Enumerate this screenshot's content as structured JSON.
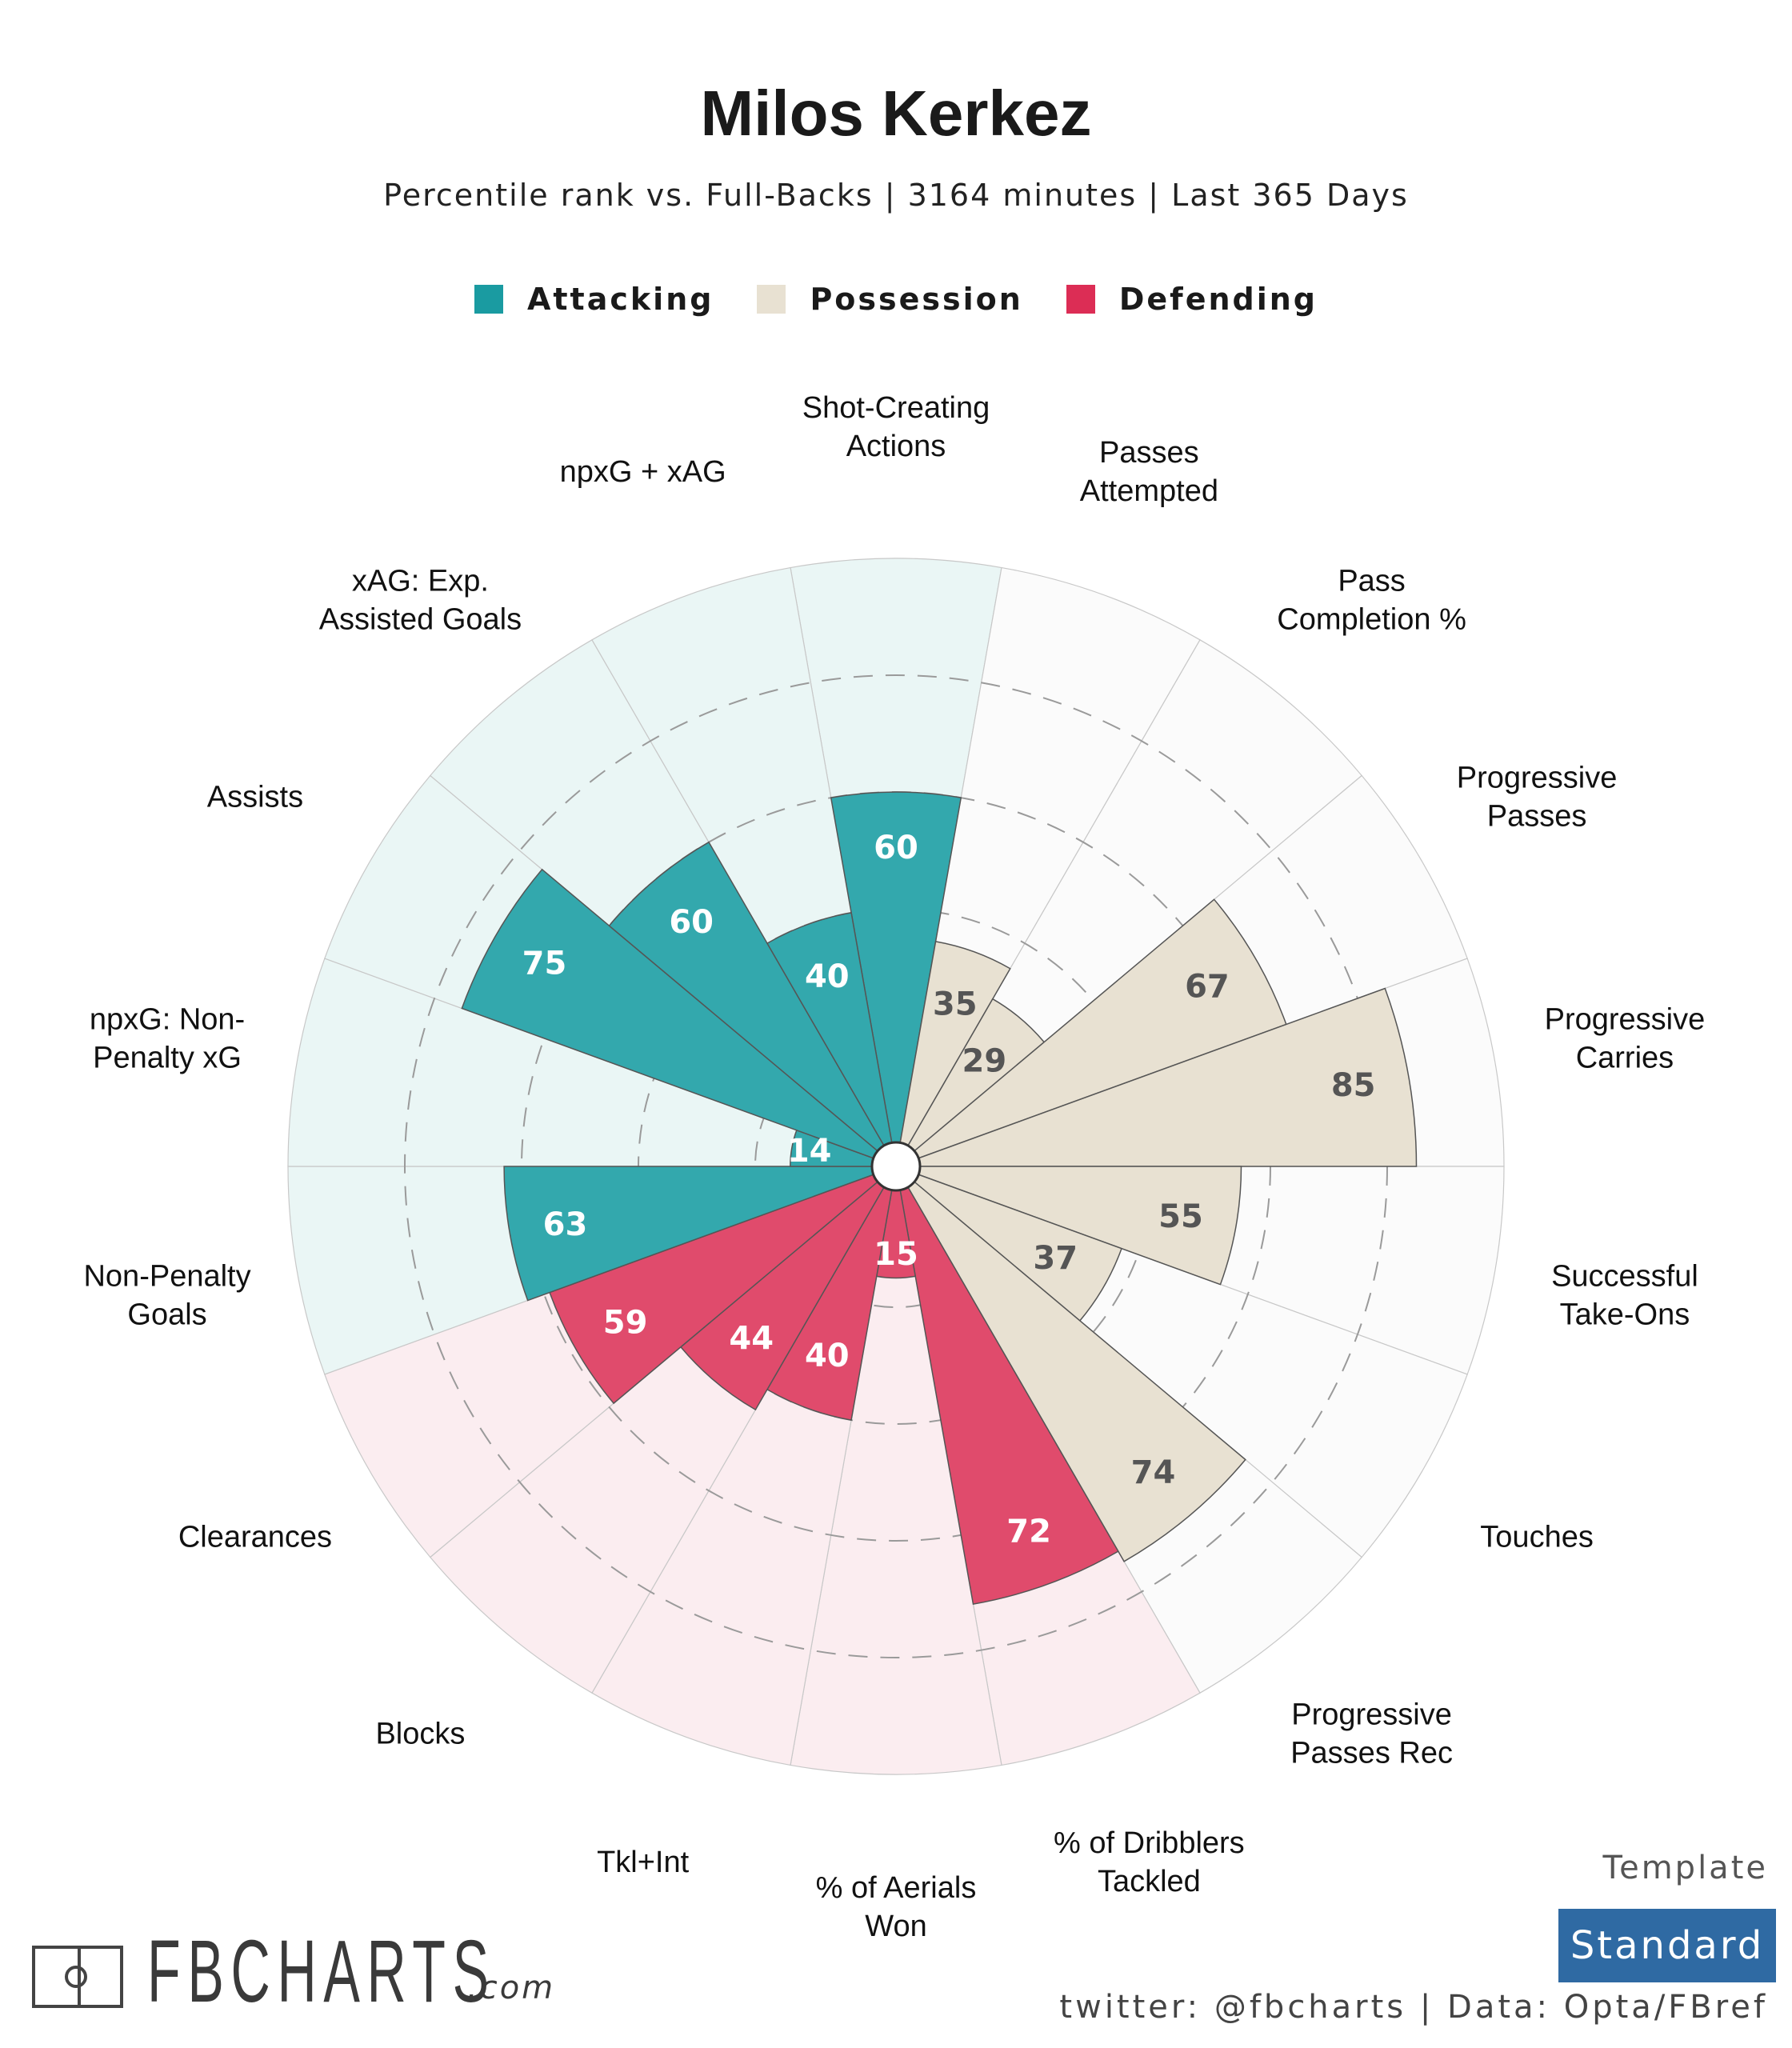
{
  "title": "Milos Kerkez",
  "subtitle": "Percentile rank vs. Full-Backs | 3164 minutes | Last 365 Days",
  "legend": [
    {
      "label": "Attacking",
      "color": "#1a9ba1"
    },
    {
      "label": "Possession",
      "color": "#e8e1d2"
    },
    {
      "label": "Defending",
      "color": "#dc2d55"
    }
  ],
  "chart_data": {
    "type": "polar-bar",
    "rmax": 100,
    "grid_rings": [
      20,
      40,
      60,
      80
    ],
    "categories_colors": {
      "Attacking": {
        "bar": "#33a8ad",
        "bg": "#eaf6f5",
        "text": "#ffffff"
      },
      "Possession": {
        "bar": "#e8e1d2",
        "bg": "#fbfbfb",
        "text": "#555555"
      },
      "Defending": {
        "bar": "#e04b6c",
        "bg": "#fbedf0",
        "text": "#ffffff"
      }
    },
    "series": [
      {
        "label": "Shot-Creating Actions",
        "value": 60,
        "category": "Attacking"
      },
      {
        "label": "Passes Attempted",
        "value": 35,
        "category": "Possession"
      },
      {
        "label": "Pass Completion %",
        "value": 29,
        "category": "Possession"
      },
      {
        "label": "Progressive Passes",
        "value": 67,
        "category": "Possession"
      },
      {
        "label": "Progressive Carries",
        "value": 85,
        "category": "Possession"
      },
      {
        "label": "Successful Take-Ons",
        "value": 55,
        "category": "Possession"
      },
      {
        "label": "Touches",
        "value": 37,
        "category": "Possession"
      },
      {
        "label": "Progressive Passes Rec",
        "value": 74,
        "category": "Possession"
      },
      {
        "label": "% of Dribblers Tackled",
        "value": 72,
        "category": "Defending"
      },
      {
        "label": "% of Aerials Won",
        "value": 15,
        "category": "Defending"
      },
      {
        "label": "Tkl+Int",
        "value": 40,
        "category": "Defending"
      },
      {
        "label": "Blocks",
        "value": 44,
        "category": "Defending"
      },
      {
        "label": "Clearances",
        "value": 59,
        "category": "Defending"
      },
      {
        "label": "Non-Penalty Goals",
        "value": 63,
        "category": "Attacking"
      },
      {
        "label": "npxG: Non-Penalty xG",
        "value": 14,
        "category": "Attacking"
      },
      {
        "label": "Assists",
        "value": 75,
        "category": "Attacking"
      },
      {
        "label": "xAG: Exp. Assisted Goals",
        "value": 60,
        "category": "Attacking"
      },
      {
        "label": "npxG + xAG",
        "value": 40,
        "category": "Attacking"
      }
    ]
  },
  "template_label": "Template",
  "template_value": "Standard",
  "logo": {
    "text": "FBCHARTS",
    "suffix": ".com"
  },
  "footer": "twitter: @fbcharts | Data: Opta/FBref"
}
